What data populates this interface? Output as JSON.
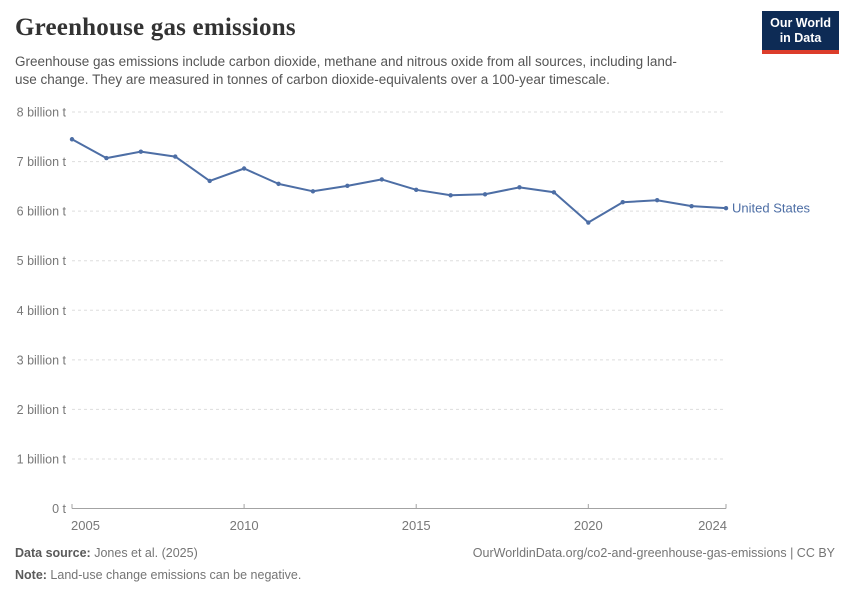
{
  "header": {
    "title": "Greenhouse gas emissions",
    "subtitle": "Greenhouse gas emissions include carbon dioxide, methane and nitrous oxide from all sources, including land-use change. They are measured in tonnes of carbon dioxide-equivalents over a 100-year timescale."
  },
  "logo": {
    "line1": "Our World",
    "line2": "in Data"
  },
  "chart_data": {
    "type": "line",
    "title": "Greenhouse gas emissions",
    "x": [
      2005,
      2006,
      2007,
      2008,
      2009,
      2010,
      2011,
      2012,
      2013,
      2014,
      2015,
      2016,
      2017,
      2018,
      2019,
      2020,
      2021,
      2022,
      2023,
      2024
    ],
    "series": [
      {
        "name": "United States",
        "color": "#4d6ea5",
        "values_billion_t": [
          7.45,
          7.07,
          7.2,
          7.1,
          6.61,
          6.86,
          6.55,
          6.4,
          6.51,
          6.64,
          6.43,
          6.32,
          6.34,
          6.48,
          6.38,
          5.77,
          6.18,
          6.22,
          6.1,
          6.06
        ]
      }
    ],
    "unit": "t",
    "ylim": [
      0,
      8
    ],
    "y_ticks": [
      0,
      1,
      2,
      3,
      4,
      5,
      6,
      7,
      8
    ],
    "y_tick_labels": [
      "0 t",
      "1 billion t",
      "2 billion t",
      "3 billion t",
      "4 billion t",
      "5 billion t",
      "6 billion t",
      "7 billion t",
      "8 billion t"
    ],
    "x_tick_years": [
      2005,
      2010,
      2015,
      2020,
      2024
    ],
    "gridlines": true,
    "legend_position": "end-of-line"
  },
  "footer": {
    "source_label": "Data source:",
    "source_value": " Jones et al. (2025)",
    "note_label": "Note:",
    "note_value": " Land-use change emissions can be negative.",
    "credit": "OurWorldinData.org/co2-and-greenhouse-gas-emissions | CC BY"
  },
  "colors": {
    "series_line": "#4d6ea5",
    "grid": "#dddddd",
    "axis_line": "#a3a3a3",
    "axis_text": "#787878",
    "title_text": "#333333",
    "subtitle_text": "#555555",
    "footer_text": "#757575",
    "logo_bg": "#0d2b55",
    "logo_red": "#dc3d2b"
  }
}
